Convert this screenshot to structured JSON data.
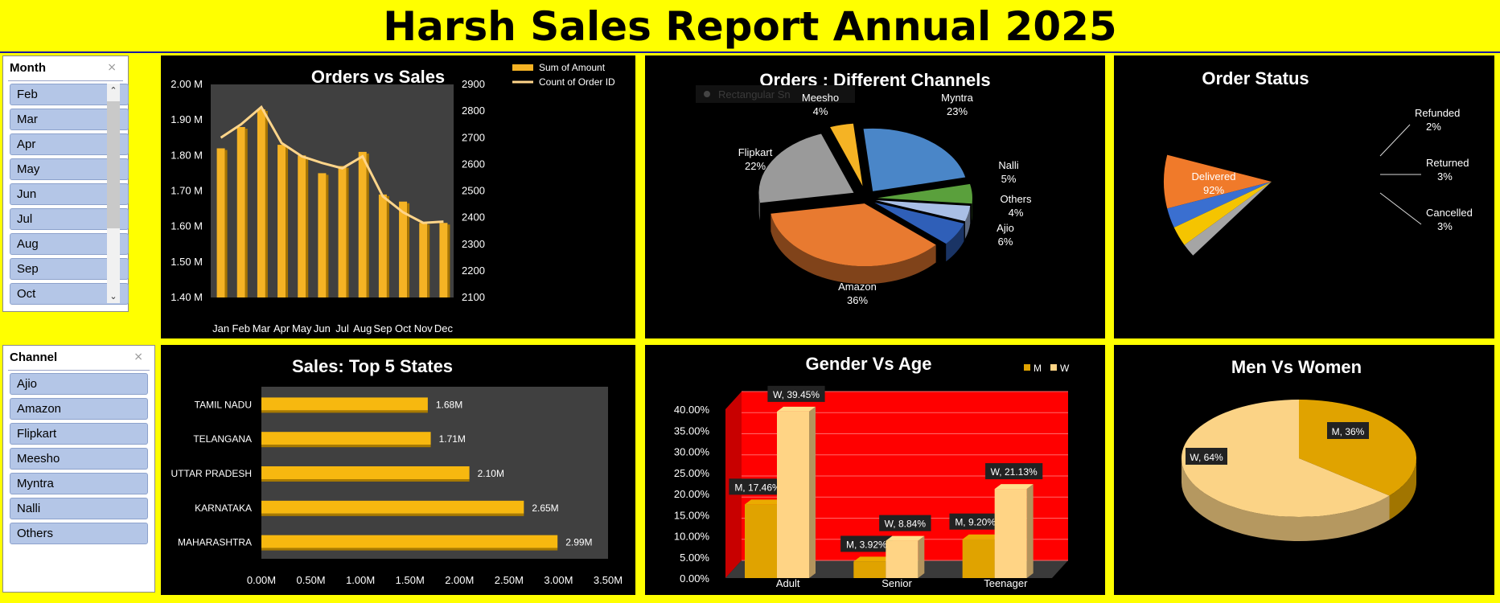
{
  "title": "Harsh Sales Report Annual 2025",
  "month_slicer": {
    "header": "Month",
    "items": [
      "Feb",
      "Mar",
      "Apr",
      "May",
      "Jun",
      "Jul",
      "Aug",
      "Sep",
      "Oct"
    ]
  },
  "channel_slicer": {
    "header": "Channel",
    "items": [
      "Ajio",
      "Amazon",
      "Flipkart",
      "Meesho",
      "Myntra",
      "Nalli",
      "Others"
    ]
  },
  "chart_data": [
    {
      "id": "orders_vs_sales",
      "type": "bar",
      "title": "Orders vs Sales",
      "categories": [
        "Jan",
        "Feb",
        "Mar",
        "Apr",
        "May",
        "Jun",
        "Jul",
        "Aug",
        "Sep",
        "Oct",
        "Nov",
        "Dec"
      ],
      "series": [
        {
          "name": "Sum of Amount",
          "type": "bar",
          "axis": "left",
          "values": [
            1.82,
            1.88,
            1.93,
            1.83,
            1.8,
            1.75,
            1.77,
            1.81,
            1.69,
            1.67,
            1.61,
            1.61
          ]
        },
        {
          "name": "Count of Order ID",
          "type": "line",
          "axis": "right",
          "values": [
            2700,
            2750,
            2815,
            2680,
            2630,
            2605,
            2585,
            2630,
            2480,
            2420,
            2380,
            2385
          ]
        }
      ],
      "left_axis": {
        "ticks": [
          "2.00 M",
          "1.90 M",
          "1.80 M",
          "1.70 M",
          "1.60 M",
          "1.50 M",
          "1.40 M"
        ],
        "range": [
          1.4,
          2.0
        ]
      },
      "right_axis": {
        "ticks": [
          "2900",
          "2800",
          "2700",
          "2600",
          "2500",
          "2400",
          "2300",
          "2200",
          "2100"
        ],
        "range": [
          2100,
          2900
        ]
      },
      "legend": "top-right",
      "colors": {
        "bar": "#f5b324",
        "line": "#ffd58a",
        "plot_bg": "#404040"
      }
    },
    {
      "id": "channels",
      "type": "pie",
      "title": "Orders : Different Channels",
      "slices": [
        {
          "name": "Meesho",
          "label": "4%",
          "value": 4,
          "color": "#f5b324"
        },
        {
          "name": "Myntra",
          "label": "23%",
          "value": 23,
          "color": "#4a86c8"
        },
        {
          "name": "Nalli",
          "label": "5%",
          "value": 5,
          "color": "#5aa03c"
        },
        {
          "name": "Others",
          "label": "4%",
          "value": 4,
          "color": "#a9bfe6"
        },
        {
          "name": "Ajio",
          "label": "6%",
          "value": 6,
          "color": "#2f5fb8"
        },
        {
          "name": "Amazon",
          "label": "36%",
          "value": 36,
          "color": "#e87a30"
        },
        {
          "name": "Flipkart",
          "label": "22%",
          "value": 22,
          "color": "#9a9a9a"
        }
      ],
      "ghost_text": "Rectangular Sn"
    },
    {
      "id": "order_status",
      "type": "pie",
      "title": "Order Status",
      "slices": [
        {
          "name": "Delivered",
          "label": "92%",
          "value": 92,
          "color": "#f07a2a"
        },
        {
          "name": "Cancelled",
          "label": "3%",
          "value": 3,
          "color": "#3a6fd0"
        },
        {
          "name": "Returned",
          "label": "3%",
          "value": 3,
          "color": "#f5c400"
        },
        {
          "name": "Refunded",
          "label": "2%",
          "value": 2,
          "color": "#a5a5a5"
        }
      ]
    },
    {
      "id": "top_states",
      "type": "bar",
      "orientation": "horizontal",
      "title": "Sales: Top 5 States",
      "categories": [
        "TAMIL NADU",
        "TELANGANA",
        "UTTAR PRADESH",
        "KARNATAKA",
        "MAHARASHTRA"
      ],
      "values": [
        1.68,
        1.71,
        2.1,
        2.65,
        2.99
      ],
      "labels": [
        "1.68M",
        "1.71M",
        "2.10M",
        "2.65M",
        "2.99M"
      ],
      "x_ticks": [
        "0.00M",
        "0.50M",
        "1.00M",
        "1.50M",
        "2.00M",
        "2.50M",
        "3.00M",
        "3.50M"
      ],
      "xlim": [
        0,
        3.5
      ],
      "colors": {
        "bar": "#f7b80f",
        "plot_bg": "#404040"
      }
    },
    {
      "id": "gender_age",
      "type": "bar",
      "title": "Gender Vs Age",
      "categories": [
        "Adult",
        "Senior",
        "Teenager"
      ],
      "series": [
        {
          "name": "M",
          "values": [
            17.46,
            3.92,
            9.2
          ],
          "labels": [
            "M, 17.46%",
            "M, 3.92%",
            "M, 9.20%"
          ],
          "color": "#e0a300"
        },
        {
          "name": "W",
          "values": [
            39.45,
            8.84,
            21.13
          ],
          "labels": [
            "W, 39.45%",
            "W, 8.84%",
            "W, 21.13%"
          ],
          "color": "#ffd485"
        }
      ],
      "y_ticks": [
        "40.00%",
        "35.00%",
        "30.00%",
        "25.00%",
        "20.00%",
        "15.00%",
        "10.00%",
        "5.00%",
        "0.00%"
      ],
      "ylim": [
        0,
        40
      ],
      "legend": "top-right",
      "colors": {
        "plot_bg": "#ff0000"
      }
    },
    {
      "id": "men_women",
      "type": "pie",
      "title": "Men Vs Women",
      "slices": [
        {
          "name": "M",
          "label": "M, 36%",
          "value": 36,
          "color": "#e0a300"
        },
        {
          "name": "W",
          "label": "W, 64%",
          "value": 64,
          "color": "#fbd386"
        }
      ]
    }
  ]
}
